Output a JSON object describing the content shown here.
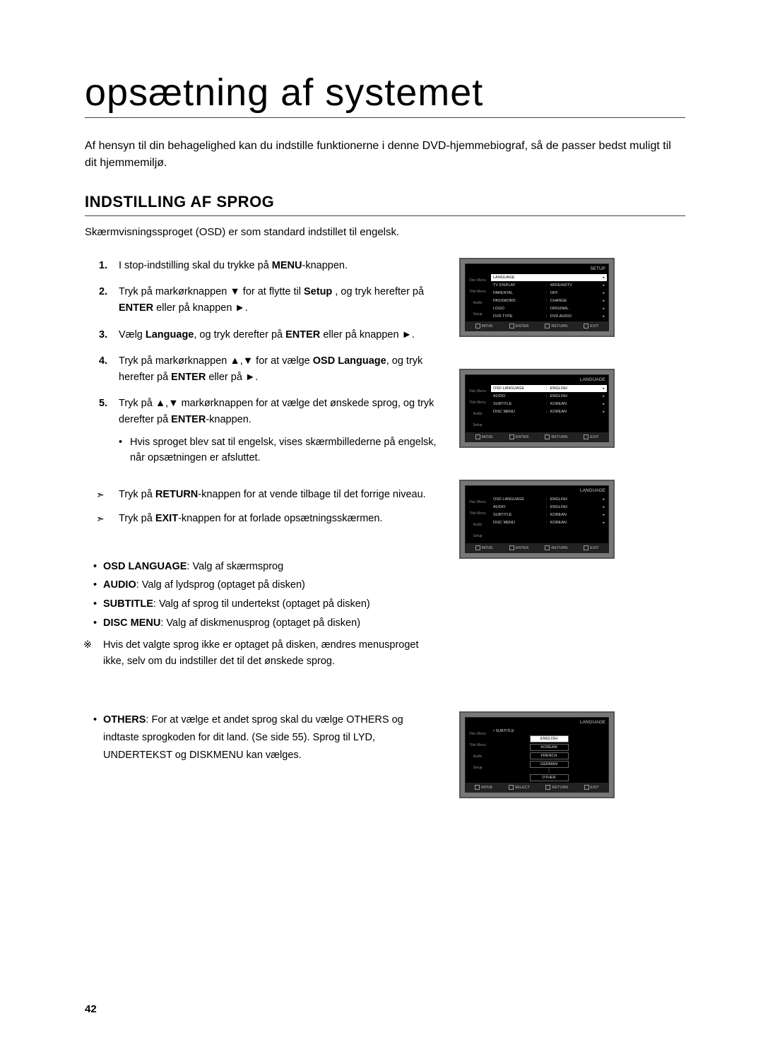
{
  "title": "opsætning af systemet",
  "intro": "Af hensyn til din behagelighed kan du indstille funktionerne i denne DVD-hjemmebiograf, så de passer bedst muligt til dit hjemmemiljø.",
  "section_title": "INDSTILLING AF SPROG",
  "sub_intro": "Skærmvisningssproget (OSD) er som standard indstillet til engelsk.",
  "steps": {
    "s1_pre": "I stop-indstilling skal du trykke på ",
    "s1_b": "MENU",
    "s1_post": "-knappen.",
    "s2_pre": "Tryk på markørknappen ▼ for at flytte til ",
    "s2_b1": "Setup ",
    "s2_mid": ", og tryk herefter på ",
    "s2_b2": "ENTER",
    "s2_post": " eller på knappen ►.",
    "s3_pre": "Vælg ",
    "s3_b1": "Language",
    "s3_mid": ", og tryk derefter på ",
    "s3_b2": "ENTER",
    "s3_post": " eller på knappen ►.",
    "s4_pre": "Tryk på markørknappen ▲,▼ for at vælge ",
    "s4_b1": "OSD Language",
    "s4_mid": ", og tryk herefter på ",
    "s4_b2": "ENTER",
    "s4_post": " eller på ►.",
    "s5_pre": "Tryk på ▲,▼ markørknappen for at vælge det ønskede sprog, og tryk derefter på ",
    "s5_b": "ENTER",
    "s5_post": "-knappen.",
    "s5_sub": "Hvis sproget blev sat til engelsk, vises skærmbillederne på engelsk, når opsætningen er afsluttet."
  },
  "arrows": {
    "a1_pre": "Tryk på ",
    "a1_b": "RETURN",
    "a1_post": "-knappen for at vende tilbage til det forrige niveau.",
    "a2_pre": "Tryk på ",
    "a2_b": "EXIT",
    "a2_post": "-knappen for at forlade opsætningsskærmen."
  },
  "defs": {
    "d1_b": "OSD LANGUAGE",
    "d1_t": ": Valg af skærmsprog",
    "d2_b": "AUDIO",
    "d2_t": ": Valg af lydsprog (optaget på disken)",
    "d3_b": "SUBTITLE",
    "d3_t": ": Valg af sprog til undertekst (optaget på disken)",
    "d4_b": "DISC MENU",
    "d4_t": ": Valg af diskmenusprog (optaget på disken)"
  },
  "note": "Hvis det valgte sprog ikke er optaget på disken, ændres menusproget ikke, selv om du indstiller det til det ønskede sprog.",
  "others_b": "OTHERS",
  "others_t": ": For at vælge et andet sprog skal du vælge OTHERS og indtaste sprogkoden for dit land. (Se side 55). Sprog til LYD, UNDERTEKST og DISKMENU kan vælges.",
  "page_num": "42",
  "screens": {
    "s1": {
      "hdr_l": "",
      "hdr_r": "SETUP",
      "side": [
        "Disc Menu",
        "Title Menu",
        "Audio",
        "Setup"
      ],
      "rows": [
        {
          "l": "LANGUAGE",
          "v": "",
          "hl": true
        },
        {
          "l": "TV DISPLAY",
          "v": "WIDE/HDTV"
        },
        {
          "l": "PARENTAL",
          "v": "OFF"
        },
        {
          "l": "PASSWORD",
          "v": "CHANGE"
        },
        {
          "l": "LOGO",
          "v": "ORIGINAL"
        },
        {
          "l": "DVD TYPE",
          "v": "DVD AUDIO"
        }
      ],
      "foot": [
        "MOVE",
        "ENTER",
        "RETURN",
        "EXIT"
      ]
    },
    "s2": {
      "hdr_l": "",
      "hdr_r": "LANGUAGE",
      "side": [
        "Disc Menu",
        "Title Menu",
        "Audio",
        "Setup"
      ],
      "rows": [
        {
          "l": "OSD LANGUAGE",
          "v": "ENGLISH",
          "hl": true
        },
        {
          "l": "AUDIO",
          "v": "ENGLISH"
        },
        {
          "l": "SUBTITLE",
          "v": "KOREAN"
        },
        {
          "l": "DISC MENU",
          "v": "KOREAN"
        }
      ],
      "foot": [
        "MOVE",
        "ENTER",
        "RETURN",
        "EXIT"
      ]
    },
    "s3": {
      "hdr_l": "",
      "hdr_r": "LANGUAGE",
      "side": [
        "Disc Menu",
        "Title Menu",
        "Audio",
        "Setup"
      ],
      "rows": [
        {
          "l": "OSD LANGUAGE",
          "v": "ENGLISH"
        },
        {
          "l": "AUDIO",
          "v": "ENGLISH"
        },
        {
          "l": "SUBTITLE",
          "v": "KOREAN"
        },
        {
          "l": "DISC MENU",
          "v": "KOREAN"
        }
      ],
      "foot": [
        "MOVE",
        "ENTER",
        "RETURN",
        "EXIT"
      ]
    },
    "s4": {
      "hdr_l": "",
      "hdr_r": "LANGUAGE",
      "side": [
        "Disc Menu",
        "Title Menu",
        "Audio",
        "Setup"
      ],
      "title": "SUBTITLE",
      "items": [
        {
          "t": "ENGLISH",
          "hl": true
        },
        {
          "t": "KOREAN"
        },
        {
          "t": "FRENCH"
        },
        {
          "t": "GERMAN"
        }
      ],
      "other": "OTHER",
      "foot": [
        "MOVE",
        "SELECT",
        "RETURN",
        "EXIT"
      ]
    }
  }
}
